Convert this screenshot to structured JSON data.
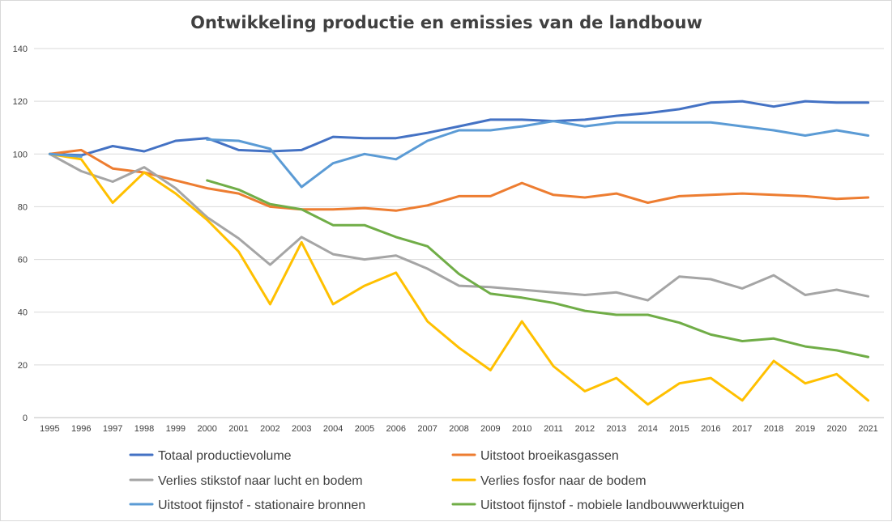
{
  "chart_data": {
    "type": "line",
    "title": "Ontwikkeling productie en emissies van de landbouw",
    "xlabel": "",
    "ylabel": "",
    "x": [
      "1995",
      "1996",
      "1997",
      "1998",
      "1999",
      "2000",
      "2001",
      "2002",
      "2003",
      "2004",
      "2005",
      "2006",
      "2007",
      "2008",
      "2009",
      "2010",
      "2011",
      "2012",
      "2013",
      "2014",
      "2015",
      "2016",
      "2017",
      "2018",
      "2019",
      "2020",
      "2021"
    ],
    "ylim": [
      0,
      140
    ],
    "yticks": [
      0,
      20,
      40,
      60,
      80,
      100,
      120,
      140
    ],
    "grid": true,
    "legend_position": "bottom",
    "series": [
      {
        "name": "Totaal productievolume",
        "color": "#4472c4",
        "values": [
          100,
          99.5,
          103,
          101,
          105,
          106,
          101.5,
          101,
          101.5,
          106.5,
          106,
          106,
          108,
          110.5,
          113,
          113,
          112.5,
          113,
          114.5,
          115.5,
          117,
          119.5,
          120,
          118,
          120,
          119.5,
          119.5
        ]
      },
      {
        "name": "Uitstoot broeikasgassen",
        "color": "#ed7d31",
        "values": [
          100,
          101.5,
          94.5,
          93,
          90,
          87,
          85,
          80,
          79,
          79,
          79.5,
          78.5,
          80.5,
          84,
          84,
          89,
          84.5,
          83.5,
          85,
          81.5,
          84,
          84.5,
          85,
          84.5,
          84,
          83,
          83.5
        ]
      },
      {
        "name": "Verlies stikstof naar lucht en bodem",
        "color": "#a5a5a5",
        "values": [
          100,
          93.5,
          89.5,
          95,
          87,
          76,
          68,
          58,
          68.5,
          62,
          60,
          61.5,
          56.5,
          50,
          49.5,
          48.5,
          47.5,
          46.5,
          47.5,
          44.5,
          53.5,
          52.5,
          49,
          54,
          46.5,
          48.5,
          46
        ]
      },
      {
        "name": "Verlies fosfor naar de bodem",
        "color": "#ffc000",
        "values": [
          100,
          98,
          81.5,
          93,
          85,
          75,
          63,
          43,
          66.5,
          43,
          50,
          55,
          36.5,
          26.5,
          18,
          36.5,
          19.5,
          10,
          15,
          5,
          13,
          15,
          6.5,
          21.5,
          13,
          16.5,
          6.5
        ]
      },
      {
        "name": "Uitstoot fijnstof - stationaire bronnen",
        "color": "#5b9bd5",
        "values": [
          100,
          99,
          null,
          null,
          null,
          105.5,
          105,
          102,
          87.5,
          96.5,
          100,
          98,
          105,
          109,
          109,
          110.5,
          112.5,
          110.5,
          112,
          112,
          112,
          112,
          110.5,
          109,
          107,
          109,
          107
        ]
      },
      {
        "name": "Uitstoot fijnstof - mobiele landbouwwerktuigen",
        "color": "#70ad47",
        "values": [
          null,
          null,
          null,
          null,
          null,
          90,
          86.5,
          81,
          79,
          73,
          73,
          68.5,
          65,
          54.5,
          47,
          45.5,
          43.5,
          40.5,
          39,
          39,
          36,
          31.5,
          29,
          30,
          27,
          25.5,
          23
        ]
      }
    ]
  }
}
